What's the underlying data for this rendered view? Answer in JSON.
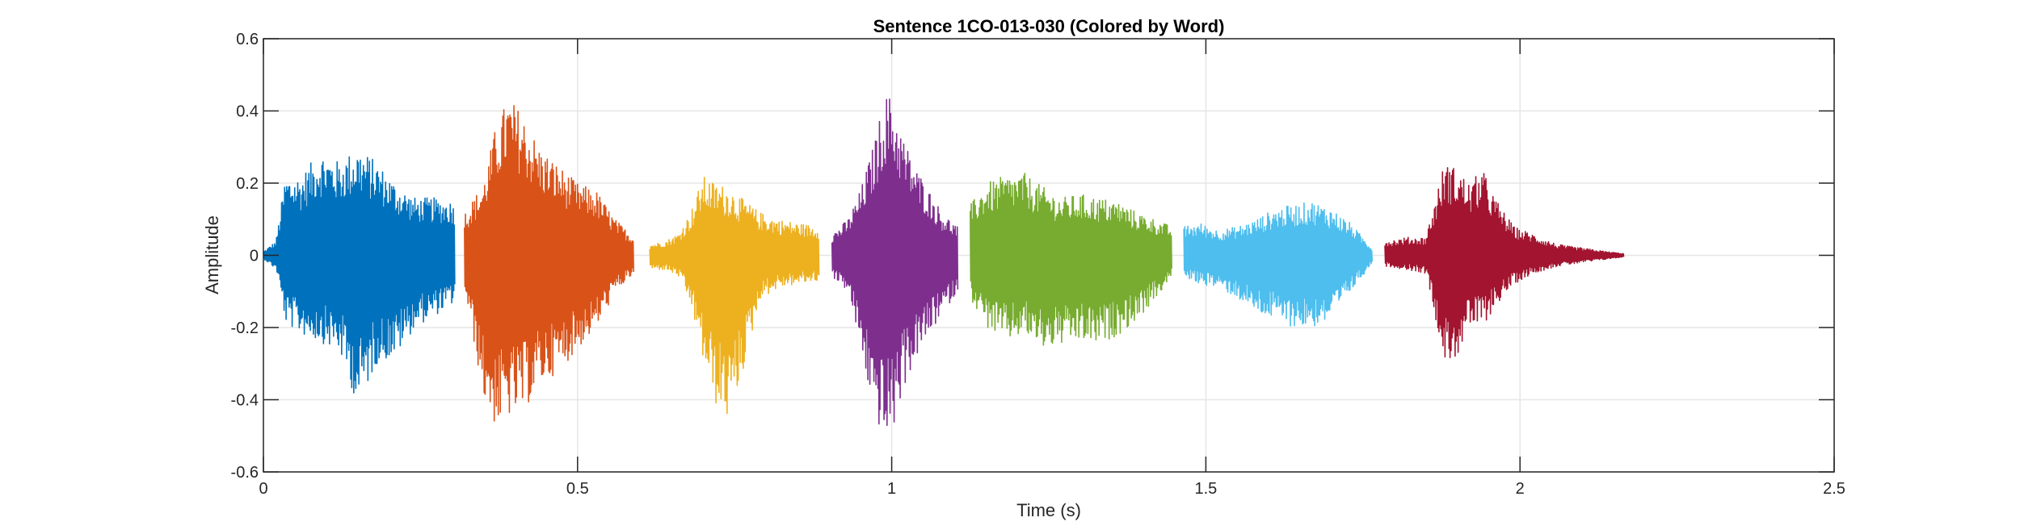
{
  "chart_data": {
    "type": "line",
    "title": "Sentence 1CO-013-030 (Colored by Word)",
    "xlabel": "Time (s)",
    "ylabel": "Amplitude",
    "xlim": [
      0,
      2.5
    ],
    "ylim": [
      -0.6,
      0.6
    ],
    "x_ticks": [
      0,
      0.5,
      1,
      1.5,
      2,
      2.5
    ],
    "x_tick_labels": [
      "0",
      "0.5",
      "1",
      "1.5",
      "2",
      "2.5"
    ],
    "y_ticks": [
      -0.6,
      -0.4,
      -0.2,
      0,
      0.2,
      0.4,
      0.6
    ],
    "y_tick_labels": [
      "-0.6",
      "-0.4",
      "-0.2",
      "0",
      "0.2",
      "0.4",
      "0.6"
    ],
    "grid": true,
    "series": [
      {
        "color": "#0072BD",
        "time_range": [
          0.0,
          0.305
        ],
        "envelope_x": [
          0.0,
          0.02,
          0.035,
          0.06,
          0.09,
          0.12,
          0.15,
          0.18,
          0.21,
          0.24,
          0.27,
          0.305
        ],
        "envelope_max": [
          0.01,
          0.04,
          0.22,
          0.22,
          0.29,
          0.26,
          0.3,
          0.26,
          0.2,
          0.16,
          0.16,
          0.15
        ],
        "envelope_min": [
          -0.01,
          -0.04,
          -0.19,
          -0.22,
          -0.24,
          -0.27,
          -0.42,
          -0.3,
          -0.28,
          -0.2,
          -0.17,
          -0.13
        ]
      },
      {
        "color": "#D95319",
        "time_range": [
          0.32,
          0.59
        ],
        "envelope_x": [
          0.32,
          0.35,
          0.37,
          0.39,
          0.41,
          0.44,
          0.47,
          0.5,
          0.53,
          0.56,
          0.59
        ],
        "envelope_max": [
          0.12,
          0.2,
          0.36,
          0.44,
          0.4,
          0.3,
          0.25,
          0.2,
          0.18,
          0.1,
          0.05
        ],
        "envelope_min": [
          -0.1,
          -0.4,
          -0.48,
          -0.45,
          -0.44,
          -0.36,
          -0.32,
          -0.26,
          -0.2,
          -0.1,
          -0.05
        ]
      },
      {
        "color": "#EDB120",
        "time_range": [
          0.615,
          0.885
        ],
        "envelope_x": [
          0.615,
          0.64,
          0.66,
          0.68,
          0.7,
          0.72,
          0.74,
          0.76,
          0.79,
          0.82,
          0.85,
          0.885
        ],
        "envelope_max": [
          0.03,
          0.04,
          0.06,
          0.12,
          0.22,
          0.2,
          0.19,
          0.16,
          0.12,
          0.1,
          0.09,
          0.08
        ],
        "envelope_min": [
          -0.04,
          -0.04,
          -0.06,
          -0.14,
          -0.3,
          -0.42,
          -0.46,
          -0.34,
          -0.12,
          -0.09,
          -0.08,
          -0.07
        ]
      },
      {
        "color": "#7E2F8E",
        "time_range": [
          0.905,
          1.105
        ],
        "envelope_x": [
          0.905,
          0.93,
          0.95,
          0.97,
          0.99,
          1.0,
          1.02,
          1.04,
          1.06,
          1.08,
          1.105
        ],
        "envelope_max": [
          0.06,
          0.1,
          0.18,
          0.3,
          0.45,
          0.44,
          0.32,
          0.24,
          0.18,
          0.12,
          0.08
        ],
        "envelope_min": [
          -0.06,
          -0.1,
          -0.26,
          -0.44,
          -0.52,
          -0.5,
          -0.36,
          -0.28,
          -0.22,
          -0.16,
          -0.1
        ]
      },
      {
        "color": "#77AC30",
        "time_range": [
          1.125,
          1.445
        ],
        "envelope_x": [
          1.125,
          1.15,
          1.18,
          1.21,
          1.24,
          1.27,
          1.3,
          1.33,
          1.36,
          1.39,
          1.42,
          1.445
        ],
        "envelope_max": [
          0.14,
          0.2,
          0.22,
          0.23,
          0.19,
          0.16,
          0.17,
          0.16,
          0.15,
          0.12,
          0.1,
          0.08
        ],
        "envelope_min": [
          -0.12,
          -0.2,
          -0.24,
          -0.22,
          -0.26,
          -0.25,
          -0.24,
          -0.25,
          -0.22,
          -0.18,
          -0.12,
          -0.06
        ]
      },
      {
        "color": "#4DBEEE",
        "time_range": [
          1.465,
          1.765
        ],
        "envelope_x": [
          1.465,
          1.49,
          1.52,
          1.55,
          1.58,
          1.61,
          1.64,
          1.67,
          1.7,
          1.73,
          1.765
        ],
        "envelope_max": [
          0.08,
          0.09,
          0.07,
          0.08,
          0.1,
          0.13,
          0.14,
          0.15,
          0.13,
          0.09,
          0.02
        ],
        "envelope_min": [
          -0.06,
          -0.08,
          -0.09,
          -0.12,
          -0.16,
          -0.18,
          -0.2,
          -0.2,
          -0.18,
          -0.1,
          -0.02
        ]
      },
      {
        "color": "#A2142F",
        "time_range": [
          1.785,
          2.165
        ],
        "envelope_x": [
          1.785,
          1.82,
          1.85,
          1.88,
          1.9,
          1.92,
          1.94,
          1.96,
          1.99,
          2.02,
          2.06,
          2.1,
          2.14,
          2.165
        ],
        "envelope_max": [
          0.04,
          0.05,
          0.05,
          0.26,
          0.24,
          0.2,
          0.24,
          0.16,
          0.08,
          0.06,
          0.03,
          0.02,
          0.01,
          0.005
        ],
        "envelope_min": [
          -0.03,
          -0.04,
          -0.05,
          -0.3,
          -0.28,
          -0.2,
          -0.2,
          -0.14,
          -0.08,
          -0.05,
          -0.03,
          -0.02,
          -0.01,
          -0.005
        ]
      }
    ]
  }
}
